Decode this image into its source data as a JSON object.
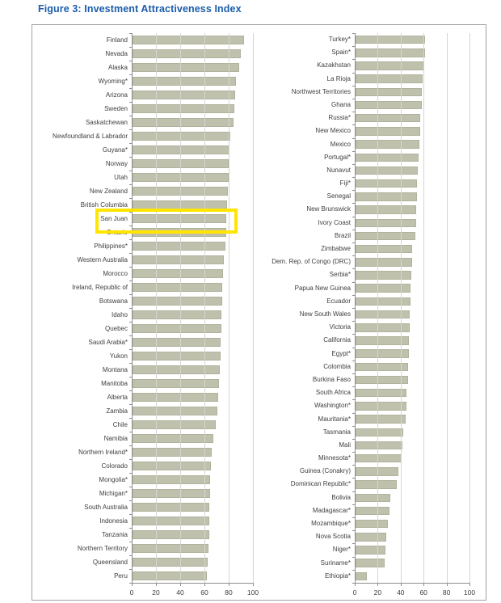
{
  "title": "Figure 3: Investment Attractiveness Index",
  "colors": {
    "title_text": "#1B5CAB",
    "bar_fill": "#BFC1AD",
    "bar_border": "#B0B29C",
    "gridline": "#D5D5D0",
    "axis": "#8E8E8E",
    "label_text": "#404040",
    "figure_border": "#A1A1A1",
    "highlight": "#FFE500"
  },
  "chart_data": [
    {
      "type": "bar",
      "orientation": "horizontal",
      "panel": "left",
      "title": "",
      "xlabel": "",
      "ylabel": "",
      "xlim": [
        0,
        100
      ],
      "xticks": [
        0,
        20,
        40,
        60,
        80,
        100
      ],
      "grid": true,
      "highlight": {
        "category": "San Juan",
        "color": "#FFE500"
      },
      "categories": [
        "Finland",
        "Nevada",
        "Alaska",
        "Wyoming*",
        "Arizona",
        "Sweden",
        "Saskatchewan",
        "Newfoundland & Labrador",
        "Guyana*",
        "Norway",
        "Utah",
        "New Zealand",
        "British Columbia",
        "San Juan",
        "Ontario",
        "Philippines*",
        "Western Australia",
        "Morocco",
        "Ireland, Republic of",
        "Botswana",
        "Idaho",
        "Quebec",
        "Saudi Arabia*",
        "Yukon",
        "Montana",
        "Manitoba",
        "Alberta",
        "Zambia",
        "Chile",
        "Namibia",
        "Northern Ireland*",
        "Colorado",
        "Mongolia*",
        "Michigan*",
        "South Australia",
        "Indonesia",
        "Tanzania",
        "Northern Territory",
        "Queensland",
        "Peru"
      ],
      "values": [
        92,
        89.5,
        88,
        85,
        84.5,
        84,
        83.5,
        80.5,
        80,
        79.5,
        79,
        78.5,
        78,
        77.5,
        77,
        76.5,
        75.5,
        74.5,
        74,
        74,
        73.5,
        73.5,
        72.5,
        72.5,
        72,
        71.5,
        70.5,
        70,
        68.5,
        66.5,
        65,
        64.5,
        64,
        64,
        63.5,
        63,
        63,
        62.5,
        62,
        61
      ]
    },
    {
      "type": "bar",
      "orientation": "horizontal",
      "panel": "right",
      "title": "",
      "xlabel": "",
      "ylabel": "",
      "xlim": [
        0,
        100
      ],
      "xticks": [
        0,
        20,
        40,
        60,
        80,
        100
      ],
      "grid": true,
      "categories": [
        "Turkey*",
        "Spain*",
        "Kazakhstan",
        "La Rioja",
        "Northwest Territories",
        "Ghana",
        "Russia*",
        "New Mexico",
        "Mexico",
        "Portugal*",
        "Nunavut",
        "Fiji*",
        "Senegal",
        "New Brunswick",
        "Ivory Coast",
        "Brazil",
        "Zimbabwe",
        "Dem. Rep. of Congo (DRC)",
        "Serbia*",
        "Papua New Guinea",
        "Ecuador",
        "New South Wales",
        "Victoria",
        "California",
        "Egypt*",
        "Colombia",
        "Burkina Faso",
        "South Africa",
        "Washington*",
        "Mauritania*",
        "Tasmania",
        "Mali",
        "Minnesota*",
        "Guinea (Conakry)",
        "Dominican Republic*",
        "Bolivia",
        "Madagascar*",
        "Mozambique*",
        "Nova Scotia",
        "Niger*",
        "Suriname*",
        "Ethiopia*"
      ],
      "values": [
        60.5,
        60.5,
        60,
        58.5,
        58,
        58,
        56.5,
        56,
        55.5,
        55,
        54,
        53.5,
        53.5,
        53,
        52.5,
        52,
        49.5,
        49,
        48.5,
        48,
        47.5,
        47,
        47,
        46.5,
        46.5,
        46,
        45.5,
        44.5,
        44,
        43.5,
        41.5,
        41,
        40,
        37,
        36,
        30,
        29.5,
        28,
        26.5,
        26,
        25,
        9.5
      ]
    }
  ]
}
